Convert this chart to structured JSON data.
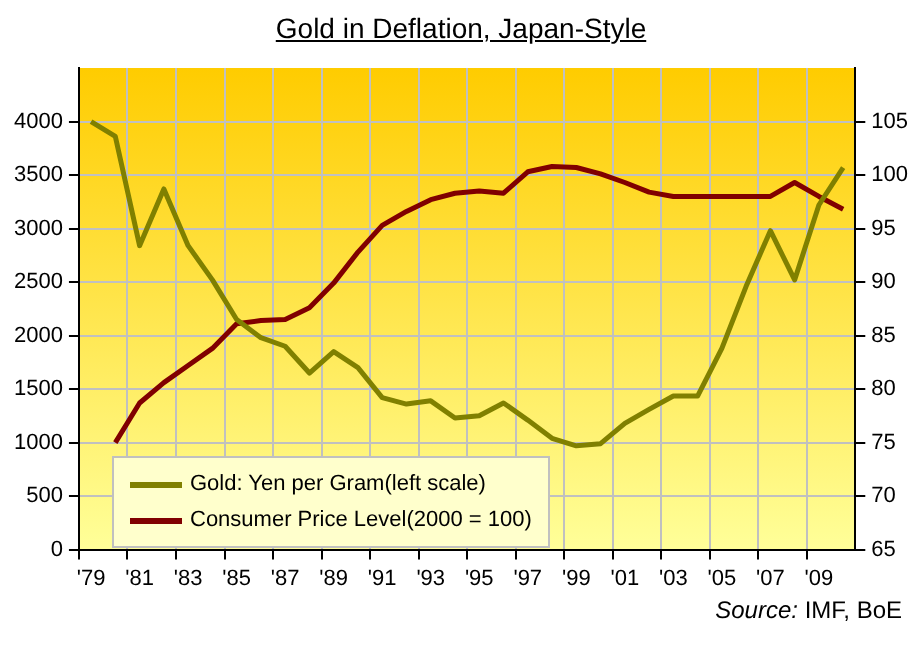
{
  "chart_data": {
    "type": "line",
    "title": "Gold in Deflation, Japan-Style",
    "categories": [
      "'79",
      null,
      "'81",
      null,
      "'83",
      null,
      "'85",
      null,
      "'87",
      null,
      "'89",
      null,
      "'91",
      null,
      "'93",
      null,
      "'95",
      null,
      "'97",
      null,
      "'99",
      null,
      "'01",
      null,
      "'03",
      null,
      "'05",
      null,
      "'07",
      null,
      "'09",
      null
    ],
    "series": [
      {
        "name": "Gold: Yen per Gram(left scale)",
        "color": "#808000",
        "values": [
          4000,
          3860,
          2840,
          3370,
          2840,
          2520,
          2150,
          1980,
          1900,
          1650,
          1850,
          1700,
          1420,
          1360,
          1390,
          1230,
          1250,
          1370,
          1210,
          1040,
          970,
          990,
          1180,
          1310,
          1435,
          1435,
          1880,
          2460,
          2980,
          2520,
          3220,
          3570
        ]
      },
      {
        "name": "Consumer Price Level(2000 = 100)",
        "color": "#800000",
        "axis": "y2",
        "values": [
          null,
          75.0,
          78.7,
          80.6,
          82.2,
          83.8,
          86.1,
          86.4,
          86.5,
          87.6,
          89.9,
          92.8,
          95.3,
          96.6,
          97.7,
          98.3,
          98.5,
          98.3,
          100.3,
          100.8,
          100.7,
          100.1,
          99.3,
          98.4,
          98.0,
          98.0,
          98.0,
          98.0,
          98.0,
          99.3,
          98.0,
          96.8
        ]
      }
    ],
    "ylim": [
      0,
      4500
    ],
    "yticks": [
      0,
      500,
      1000,
      1500,
      2000,
      2500,
      3000,
      3500,
      4000
    ],
    "y2lim": [
      65,
      110
    ],
    "y2ticks": [
      65,
      70,
      75,
      80,
      85,
      90,
      95,
      100,
      105
    ],
    "grid": true,
    "legend": "bottom left",
    "marker": "none",
    "line_style": "solid",
    "annotations": [
      "Source: IMF, BoE"
    ]
  }
}
